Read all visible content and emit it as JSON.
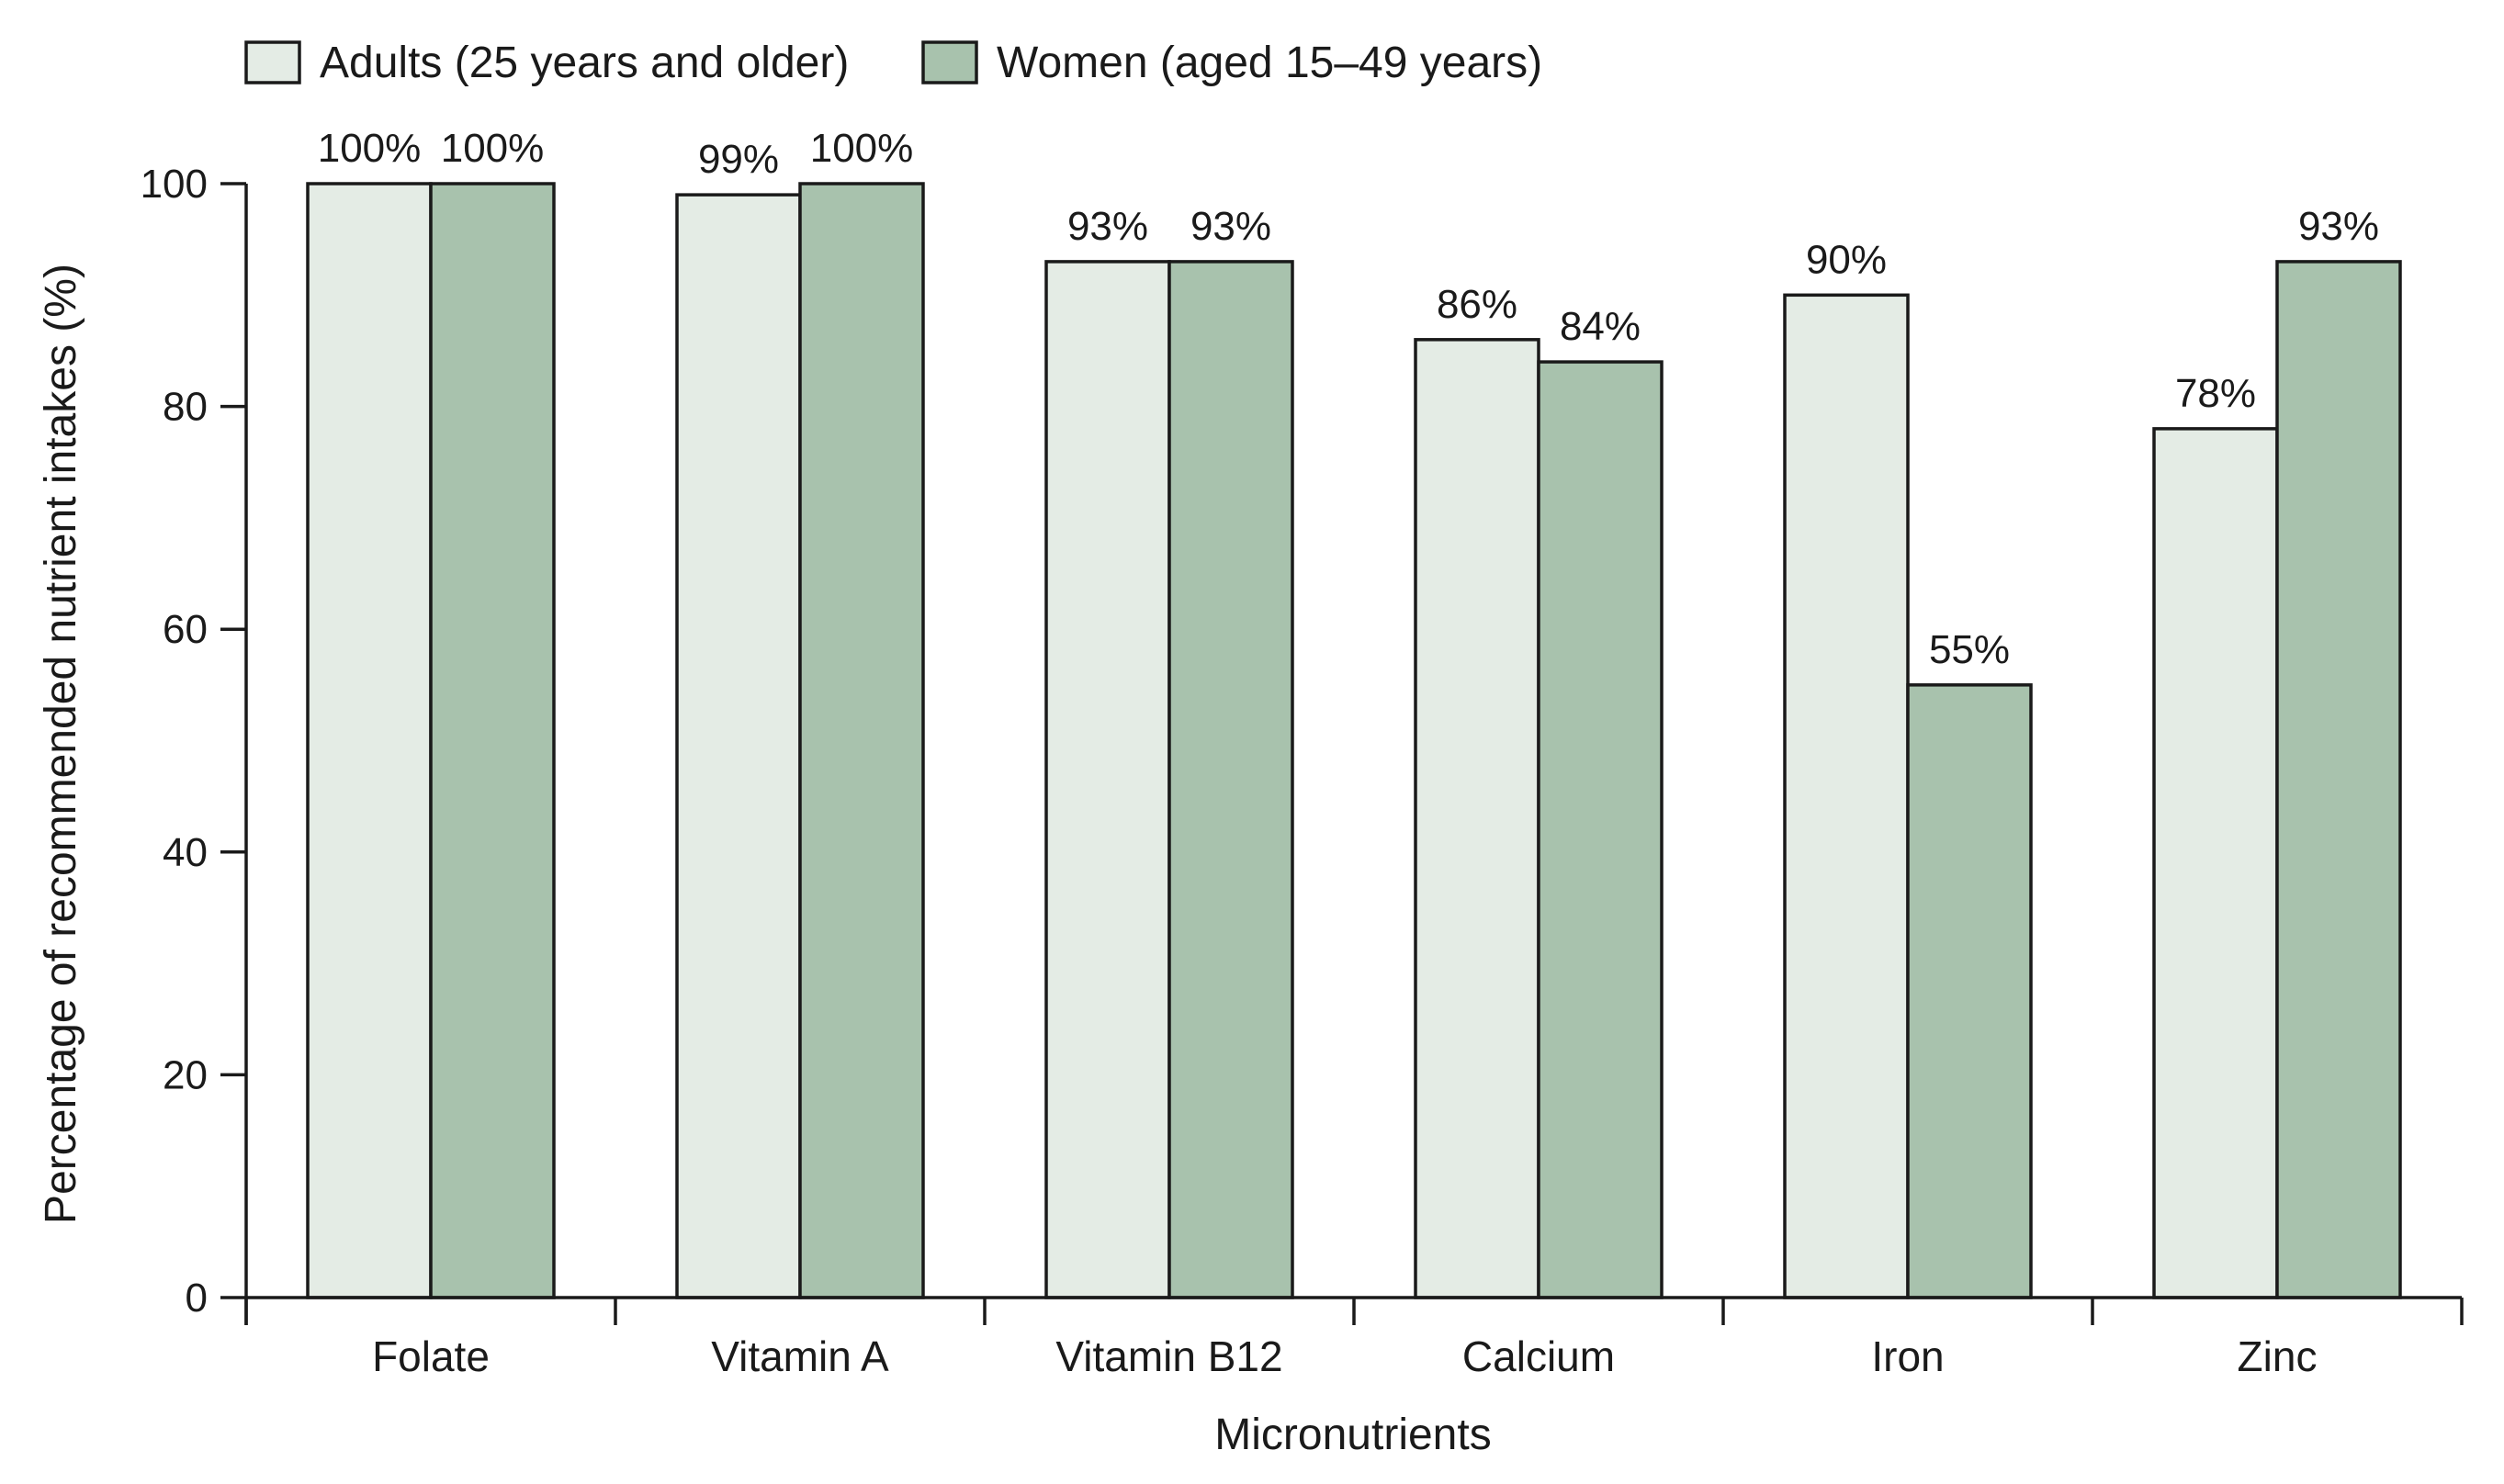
{
  "chart_data": {
    "type": "bar",
    "categories": [
      "Folate",
      "Vitamin A",
      "Vitamin B12",
      "Calcium",
      "Iron",
      "Zinc"
    ],
    "series": [
      {
        "name": "Adults (25 years and older)",
        "values": [
          100,
          99,
          93,
          86,
          90,
          78
        ],
        "labels": [
          "100%",
          "99%",
          "93%",
          "86%",
          "90%",
          "78%"
        ],
        "color": "#e4ece5"
      },
      {
        "name": "Women (aged 15–49 years)",
        "values": [
          100,
          100,
          93,
          84,
          55,
          93
        ],
        "labels": [
          "100%",
          "100%",
          "93%",
          "84%",
          "55%",
          "93%"
        ],
        "color": "#a8c2ad"
      }
    ],
    "xlabel": "Micronutrients",
    "ylabel": "Percentage of recommended nutrient intakes (%)",
    "ylim": [
      0,
      100
    ],
    "yticks": [
      0,
      20,
      40,
      60,
      80,
      100
    ],
    "ytick_labels": [
      "0",
      "20",
      "40",
      "60",
      "80",
      "100"
    ],
    "grid": false,
    "legend_position": "top-left"
  }
}
